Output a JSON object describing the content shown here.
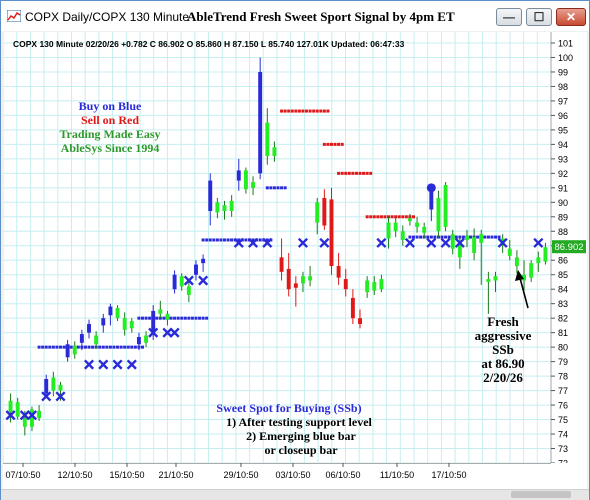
{
  "window": {
    "title": "COPX  Daily/COPX 130 Minute",
    "signal_title": "AbleTrend Fresh Sweet Sport Signal by 4pm ET",
    "buttons": {
      "minimize": "—",
      "maximize": "☐",
      "close": "✕"
    }
  },
  "chart": {
    "info_line": "COPX 130 Minute 02/20/26 +0.782 C 86.902 O 85.860 H 87.150 L 85.740 127.01K Updated: 06:47:33",
    "price_badge": "86.902",
    "legend": [
      {
        "text": "Buy on Blue",
        "color": "#2a2ad8"
      },
      {
        "text": "Sell on Red",
        "color": "#e01818"
      },
      {
        "text": "Trading Made Easy",
        "color": "#2e9a2e"
      },
      {
        "text": "AbleSys Since 1994",
        "color": "#2e9a2e"
      }
    ],
    "sweet_spot": {
      "title": "Sweet Spot for Buying (SSb)",
      "line1": "1) After testing support level",
      "line2": "2) Emerging blue bar",
      "line3": "or closeup bar"
    },
    "callout": [
      "Fresh",
      "aggressive",
      "SSb",
      "at 86.90",
      "2/20/26"
    ],
    "colors": {
      "up": "#2e9a2e",
      "bull": "#2a2ad8",
      "bear": "#e01818",
      "lime": "#22ee22",
      "grid": "#c7eef0",
      "badge": "#22aa22"
    }
  },
  "chart_data": {
    "type": "candlestick",
    "ylim": [
      72,
      101
    ],
    "y_ticks": [
      72,
      73,
      74,
      75,
      76,
      77,
      78,
      79,
      80,
      81,
      82,
      83,
      84,
      85,
      86,
      87,
      88,
      89,
      90,
      91,
      92,
      93,
      94,
      95,
      96,
      97,
      98,
      99,
      100,
      101
    ],
    "x_ticks": [
      "07/10:50",
      "12/10:50",
      "15/10:50",
      "21/10:50",
      "29/10:50",
      "03/10:50",
      "06/10:50",
      "11/10:50",
      "17/10:50"
    ],
    "bars": [
      {
        "o": 75.5,
        "h": 76.8,
        "l": 74.8,
        "c": 76.3,
        "col": "green"
      },
      {
        "o": 76.2,
        "h": 76.5,
        "l": 75.0,
        "c": 75.2,
        "col": "green"
      },
      {
        "o": 75.1,
        "h": 75.6,
        "l": 73.9,
        "c": 74.5,
        "col": "green"
      },
      {
        "o": 74.5,
        "h": 75.9,
        "l": 74.2,
        "c": 75.7,
        "col": "green"
      },
      {
        "o": 75.6,
        "h": 76.0,
        "l": 74.9,
        "c": 75.1,
        "col": "green"
      },
      {
        "o": 76.8,
        "h": 78.1,
        "l": 76.5,
        "c": 77.8,
        "col": "blue"
      },
      {
        "o": 77.9,
        "h": 78.3,
        "l": 76.6,
        "c": 77.0,
        "col": "green"
      },
      {
        "o": 77.0,
        "h": 77.6,
        "l": 76.3,
        "c": 77.4,
        "col": "green"
      },
      {
        "o": 79.3,
        "h": 80.5,
        "l": 79.0,
        "c": 80.2,
        "col": "blue"
      },
      {
        "o": 80.1,
        "h": 80.4,
        "l": 79.2,
        "c": 79.5,
        "col": "green"
      },
      {
        "o": 80.3,
        "h": 81.2,
        "l": 79.8,
        "c": 80.9,
        "col": "blue"
      },
      {
        "o": 81.0,
        "h": 81.9,
        "l": 80.6,
        "c": 81.6,
        "col": "blue"
      },
      {
        "o": 80.2,
        "h": 81.1,
        "l": 79.9,
        "c": 80.8,
        "col": "green"
      },
      {
        "o": 81.5,
        "h": 82.3,
        "l": 81.0,
        "c": 82.0,
        "col": "blue"
      },
      {
        "o": 82.2,
        "h": 83.0,
        "l": 81.5,
        "c": 82.8,
        "col": "blue"
      },
      {
        "o": 82.7,
        "h": 82.9,
        "l": 81.8,
        "c": 82.0,
        "col": "green"
      },
      {
        "o": 82.0,
        "h": 82.4,
        "l": 80.8,
        "c": 81.2,
        "col": "green"
      },
      {
        "o": 81.3,
        "h": 82.0,
        "l": 81.0,
        "c": 81.8,
        "col": "green"
      },
      {
        "o": 80.2,
        "h": 81.0,
        "l": 79.8,
        "c": 80.7,
        "col": "blue"
      },
      {
        "o": 80.8,
        "h": 81.1,
        "l": 80.0,
        "c": 80.3,
        "col": "green"
      },
      {
        "o": 81.0,
        "h": 82.9,
        "l": 80.5,
        "c": 82.5,
        "col": "blue"
      },
      {
        "o": 82.6,
        "h": 83.2,
        "l": 82.0,
        "c": 82.3,
        "col": "green"
      },
      {
        "o": 82.3,
        "h": 82.5,
        "l": 81.5,
        "c": 81.9,
        "col": "green"
      },
      {
        "o": 84.0,
        "h": 85.3,
        "l": 83.7,
        "c": 85.0,
        "col": "blue"
      },
      {
        "o": 84.9,
        "h": 85.1,
        "l": 83.9,
        "c": 84.2,
        "col": "green"
      },
      {
        "o": 84.2,
        "h": 84.6,
        "l": 83.1,
        "c": 83.6,
        "col": "green"
      },
      {
        "o": 85.0,
        "h": 86.0,
        "l": 84.6,
        "c": 85.7,
        "col": "blue"
      },
      {
        "o": 85.8,
        "h": 86.4,
        "l": 85.2,
        "c": 86.1,
        "col": "blue"
      },
      {
        "o": 89.4,
        "h": 92.0,
        "l": 88.4,
        "c": 91.5,
        "col": "blue"
      },
      {
        "o": 90.0,
        "h": 90.3,
        "l": 88.9,
        "c": 89.3,
        "col": "green"
      },
      {
        "o": 89.4,
        "h": 90.1,
        "l": 88.8,
        "c": 89.8,
        "col": "green"
      },
      {
        "o": 90.1,
        "h": 90.5,
        "l": 89.0,
        "c": 89.4,
        "col": "green"
      },
      {
        "o": 91.5,
        "h": 93.0,
        "l": 90.8,
        "c": 92.2,
        "col": "blue"
      },
      {
        "o": 92.2,
        "h": 92.4,
        "l": 90.6,
        "c": 90.9,
        "col": "green"
      },
      {
        "o": 91.0,
        "h": 91.8,
        "l": 90.5,
        "c": 91.4,
        "col": "green"
      },
      {
        "o": 92.0,
        "h": 100.0,
        "l": 91.6,
        "c": 99.0,
        "col": "blue"
      },
      {
        "o": 95.5,
        "h": 96.5,
        "l": 92.6,
        "c": 93.2,
        "col": "green"
      },
      {
        "o": 93.2,
        "h": 94.2,
        "l": 92.8,
        "c": 93.8,
        "col": "green"
      },
      {
        "o": 86.2,
        "h": 87.5,
        "l": 84.6,
        "c": 85.2,
        "col": "red"
      },
      {
        "o": 85.4,
        "h": 86.5,
        "l": 83.5,
        "c": 84.0,
        "col": "red"
      },
      {
        "o": 84.1,
        "h": 84.9,
        "l": 82.8,
        "c": 84.4,
        "col": "red"
      },
      {
        "o": 84.4,
        "h": 85.2,
        "l": 83.8,
        "c": 84.9,
        "col": "green"
      },
      {
        "o": 84.9,
        "h": 85.6,
        "l": 84.2,
        "c": 84.6,
        "col": "green"
      },
      {
        "o": 88.6,
        "h": 90.3,
        "l": 87.8,
        "c": 90.0,
        "col": "green"
      },
      {
        "o": 90.3,
        "h": 90.9,
        "l": 88.1,
        "c": 88.4,
        "col": "red"
      },
      {
        "o": 90.2,
        "h": 91.0,
        "l": 85.0,
        "c": 85.6,
        "col": "red"
      },
      {
        "o": 85.6,
        "h": 86.5,
        "l": 84.3,
        "c": 84.8,
        "col": "red"
      },
      {
        "o": 84.7,
        "h": 85.4,
        "l": 83.5,
        "c": 84.0,
        "col": "red"
      },
      {
        "o": 83.4,
        "h": 84.0,
        "l": 81.6,
        "c": 82.0,
        "col": "red"
      },
      {
        "o": 82.0,
        "h": 82.6,
        "l": 81.3,
        "c": 81.6,
        "col": "red"
      },
      {
        "o": 83.8,
        "h": 84.9,
        "l": 83.4,
        "c": 84.6,
        "col": "green"
      },
      {
        "o": 84.5,
        "h": 84.9,
        "l": 83.6,
        "c": 83.9,
        "col": "green"
      },
      {
        "o": 84.0,
        "h": 85.0,
        "l": 83.8,
        "c": 84.7,
        "col": "green"
      },
      {
        "o": 87.5,
        "h": 89.0,
        "l": 86.8,
        "c": 88.6,
        "col": "green"
      },
      {
        "o": 88.6,
        "h": 89.0,
        "l": 87.6,
        "c": 88.0,
        "col": "green"
      },
      {
        "o": 88.0,
        "h": 88.4,
        "l": 87.0,
        "c": 87.4,
        "col": "green"
      },
      {
        "o": 88.9,
        "h": 89.2,
        "l": 88.4,
        "c": 88.7,
        "col": "green"
      },
      {
        "o": 88.6,
        "h": 89.0,
        "l": 87.9,
        "c": 88.3,
        "col": "green"
      },
      {
        "o": 88.3,
        "h": 88.6,
        "l": 87.5,
        "c": 87.9,
        "col": "green"
      },
      {
        "o": 89.5,
        "h": 91.2,
        "l": 88.7,
        "c": 91.0,
        "col": "blue"
      },
      {
        "o": 90.3,
        "h": 90.8,
        "l": 87.6,
        "c": 88.0,
        "col": "green"
      },
      {
        "o": 88.3,
        "h": 91.4,
        "l": 88.0,
        "c": 91.2,
        "col": "green"
      },
      {
        "o": 86.8,
        "h": 88.1,
        "l": 86.4,
        "c": 87.8,
        "col": "green"
      },
      {
        "o": 87.2,
        "h": 87.6,
        "l": 85.4,
        "c": 86.2,
        "col": "green"
      },
      {
        "o": 87.4,
        "h": 88.1,
        "l": 86.9,
        "c": 87.7,
        "col": "green"
      },
      {
        "o": 87.6,
        "h": 88.2,
        "l": 86.0,
        "c": 86.5,
        "col": "green"
      },
      {
        "o": 87.8,
        "h": 88.1,
        "l": 84.3,
        "c": 87.2,
        "col": "green"
      },
      {
        "o": 84.5,
        "h": 85.2,
        "l": 82.3,
        "c": 84.7,
        "col": "green"
      },
      {
        "o": 84.6,
        "h": 85.2,
        "l": 83.8,
        "c": 84.9,
        "col": "green"
      },
      {
        "o": 87.0,
        "h": 87.8,
        "l": 86.5,
        "c": 87.5,
        "col": "green"
      },
      {
        "o": 86.8,
        "h": 87.4,
        "l": 86.0,
        "c": 86.3,
        "col": "green"
      },
      {
        "o": 86.2,
        "h": 86.7,
        "l": 85.1,
        "c": 85.6,
        "col": "green"
      },
      {
        "o": 85.0,
        "h": 86.0,
        "l": 83.9,
        "c": 84.6,
        "col": "green"
      },
      {
        "o": 84.8,
        "h": 86.0,
        "l": 84.5,
        "c": 85.8,
        "col": "green"
      },
      {
        "o": 85.8,
        "h": 86.6,
        "l": 85.2,
        "c": 86.2,
        "col": "green"
      },
      {
        "o": 85.9,
        "h": 87.2,
        "l": 85.7,
        "c": 86.9,
        "col": "green"
      }
    ],
    "x_markers": [
      {
        "i": 0,
        "y": 75.3
      },
      {
        "i": 2,
        "y": 75.3
      },
      {
        "i": 3,
        "y": 75.3
      },
      {
        "i": 5,
        "y": 76.6
      },
      {
        "i": 7,
        "y": 76.6
      },
      {
        "i": 11,
        "y": 78.8
      },
      {
        "i": 13,
        "y": 78.8
      },
      {
        "i": 15,
        "y": 78.8
      },
      {
        "i": 17,
        "y": 78.8
      },
      {
        "i": 20,
        "y": 81.0
      },
      {
        "i": 22,
        "y": 81.0
      },
      {
        "i": 23,
        "y": 81.0
      },
      {
        "i": 25,
        "y": 84.6
      },
      {
        "i": 27,
        "y": 84.6
      },
      {
        "i": 32,
        "y": 87.2
      },
      {
        "i": 34,
        "y": 87.2
      },
      {
        "i": 36,
        "y": 87.2
      },
      {
        "i": 41,
        "y": 87.2
      },
      {
        "i": 44,
        "y": 87.2
      },
      {
        "i": 52,
        "y": 87.2
      },
      {
        "i": 56,
        "y": 87.2
      },
      {
        "i": 59,
        "y": 87.2
      },
      {
        "i": 61,
        "y": 87.2
      },
      {
        "i": 63,
        "y": 87.2
      },
      {
        "i": 69,
        "y": 87.2
      },
      {
        "i": 74,
        "y": 87.2
      }
    ],
    "dot_lines": [
      {
        "from": 4,
        "to": 18,
        "y": 80.0,
        "color": "blue"
      },
      {
        "from": 18,
        "to": 27,
        "y": 82.0,
        "color": "blue"
      },
      {
        "from": 27,
        "to": 36,
        "y": 87.4,
        "color": "blue"
      },
      {
        "from": 36,
        "to": 38,
        "y": 91.0,
        "color": "blue"
      },
      {
        "from": 38,
        "to": 44,
        "y": 96.3,
        "color": "red"
      },
      {
        "from": 44,
        "to": 46,
        "y": 94.0,
        "color": "red"
      },
      {
        "from": 46,
        "to": 50,
        "y": 92.0,
        "color": "red"
      },
      {
        "from": 50,
        "to": 56,
        "y": 89.0,
        "color": "red"
      },
      {
        "from": 56,
        "to": 68,
        "y": 87.6,
        "color": "blue"
      }
    ],
    "circle_marker": {
      "i": 59,
      "y": 91.0
    }
  }
}
